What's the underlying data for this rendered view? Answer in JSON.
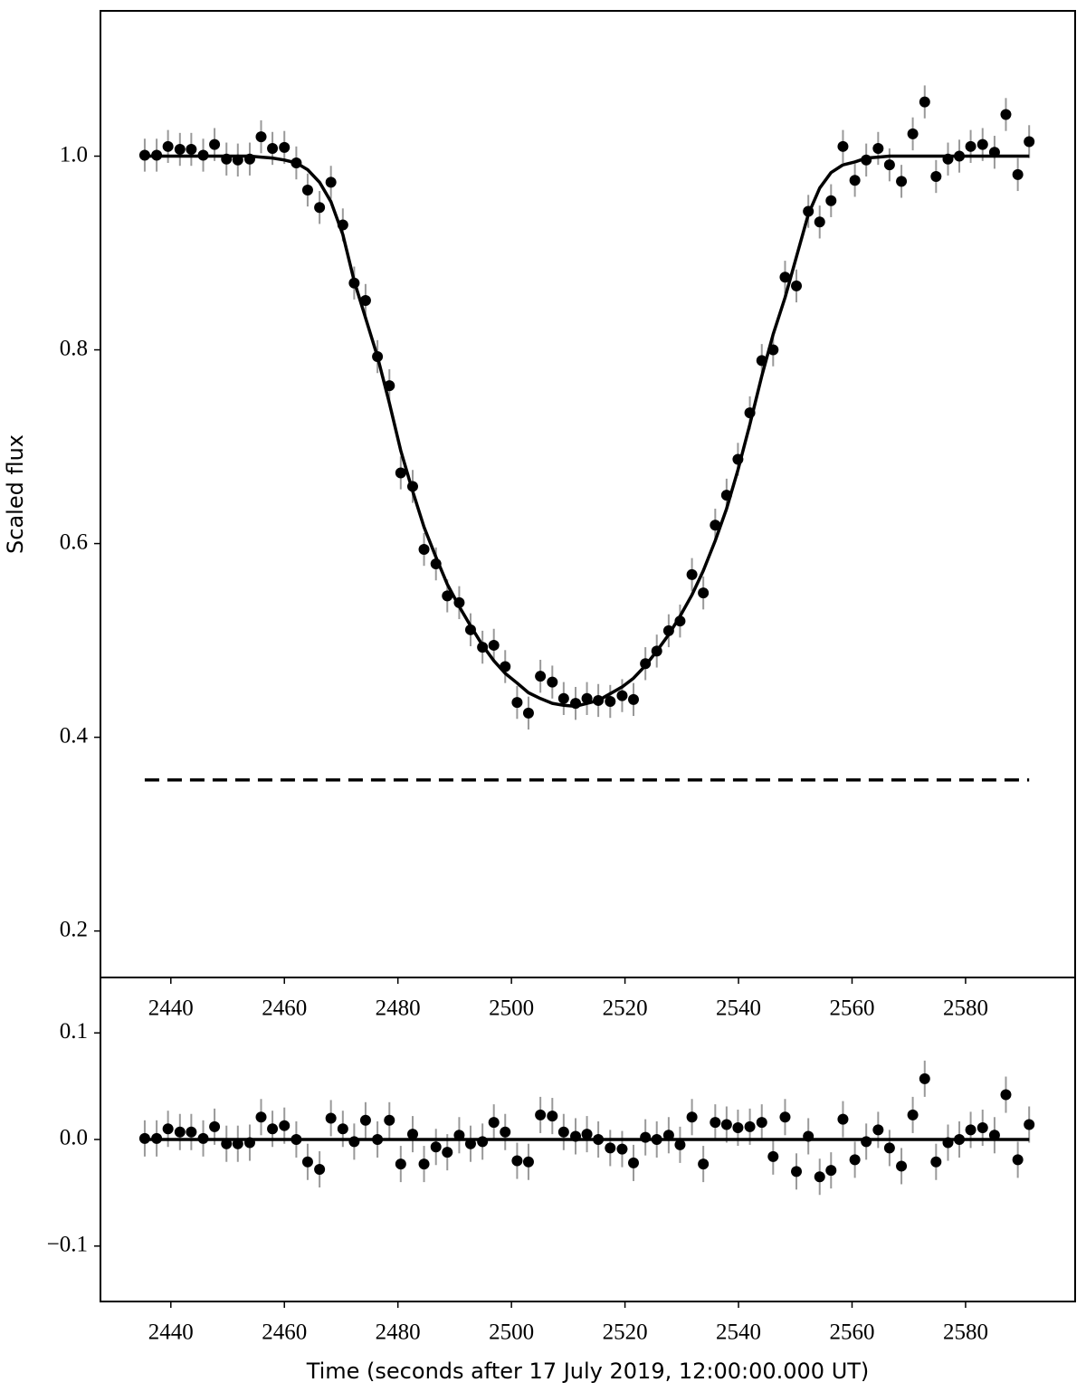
{
  "chart_data": [
    {
      "type": "errorbar",
      "ylabel": "Scaled flux",
      "xlim": [
        2427.6,
        2599.3
      ],
      "ylim": [
        0.152,
        1.15
      ],
      "xticks": [
        2440,
        2460,
        2480,
        2500,
        2520,
        2540,
        2560,
        2580
      ],
      "yticks": [
        0.2,
        0.4,
        0.6,
        0.8,
        {
          "value": 1,
          "label": "1.0"
        }
      ],
      "series": [
        {
          "style": "points",
          "color": "#000000",
          "error_color": "#999999",
          "x": [
            2435.4,
            2437.5,
            2439.5,
            2441.6,
            2443.6,
            2445.7,
            2447.7,
            2449.8,
            2451.8,
            2453.9,
            2455.9,
            2457.9,
            2460.0,
            2462.1,
            2464.1,
            2466.2,
            2468.2,
            2470.3,
            2472.3,
            2474.3,
            2476.4,
            2478.5,
            2480.5,
            2482.6,
            2484.6,
            2486.7,
            2488.7,
            2490.8,
            2492.8,
            2494.9,
            2496.9,
            2498.9,
            2501.0,
            2503.0,
            2505.1,
            2507.2,
            2509.2,
            2511.3,
            2513.3,
            2515.3,
            2517.4,
            2519.5,
            2521.5,
            2523.6,
            2525.6,
            2527.7,
            2529.7,
            2531.8,
            2533.8,
            2535.9,
            2537.9,
            2539.9,
            2542.0,
            2544.1,
            2546.1,
            2548.2,
            2550.2,
            2552.3,
            2554.3,
            2556.3,
            2558.4,
            2560.5,
            2562.5,
            2564.6,
            2566.6,
            2568.7,
            2570.7,
            2572.8,
            2574.8,
            2576.9,
            2578.9,
            2580.9,
            2583.0,
            2585.1,
            2587.1,
            2589.2,
            2591.2
          ],
          "values": [
            1.001,
            1.001,
            1.01,
            1.007,
            1.007,
            1.001,
            1.012,
            0.997,
            0.996,
            0.997,
            1.02,
            1.008,
            1.009,
            0.993,
            0.965,
            0.947,
            0.973,
            0.929,
            0.869,
            0.851,
            0.793,
            0.763,
            0.673,
            0.659,
            0.594,
            0.579,
            0.546,
            0.539,
            0.511,
            0.493,
            0.495,
            0.473,
            0.436,
            0.425,
            0.463,
            0.457,
            0.44,
            0.435,
            0.44,
            0.438,
            0.437,
            0.443,
            0.439,
            0.476,
            0.489,
            0.51,
            0.52,
            0.568,
            0.549,
            0.619,
            0.65,
            0.687,
            0.735,
            0.789,
            0.8,
            0.875,
            0.866,
            0.943,
            0.932,
            0.954,
            1.01,
            0.975,
            0.996,
            1.008,
            0.991,
            0.974,
            1.023,
            1.056,
            0.979,
            0.997,
            1.0,
            1.01,
            1.012,
            1.004,
            1.043,
            0.981,
            1.015
          ],
          "errors": [
            0.017,
            0.017,
            0.017,
            0.017,
            0.017,
            0.017,
            0.017,
            0.017,
            0.017,
            0.017,
            0.017,
            0.017,
            0.017,
            0.017,
            0.017,
            0.017,
            0.017,
            0.017,
            0.017,
            0.017,
            0.017,
            0.017,
            0.017,
            0.017,
            0.017,
            0.017,
            0.017,
            0.017,
            0.017,
            0.017,
            0.017,
            0.017,
            0.017,
            0.017,
            0.017,
            0.017,
            0.017,
            0.017,
            0.017,
            0.017,
            0.017,
            0.017,
            0.017,
            0.017,
            0.017,
            0.017,
            0.017,
            0.017,
            0.017,
            0.017,
            0.017,
            0.017,
            0.017,
            0.017,
            0.017,
            0.017,
            0.017,
            0.017,
            0.017,
            0.017,
            0.017,
            0.017,
            0.017,
            0.017,
            0.017,
            0.017,
            0.017,
            0.017,
            0.017,
            0.017,
            0.017,
            0.017,
            0.017,
            0.017,
            0.017,
            0.017,
            0.017
          ]
        },
        {
          "style": "line",
          "color": "#000000",
          "x": [
            2435.4,
            2437.5,
            2439.5,
            2441.6,
            2443.6,
            2445.7,
            2447.7,
            2449.8,
            2451.8,
            2453.9,
            2455.9,
            2457.9,
            2460.0,
            2462.1,
            2464.1,
            2466.2,
            2468.2,
            2470.3,
            2472.3,
            2474.3,
            2476.4,
            2478.5,
            2480.5,
            2482.6,
            2484.6,
            2486.7,
            2488.7,
            2490.8,
            2492.8,
            2494.9,
            2496.9,
            2498.9,
            2501.0,
            2503.0,
            2505.1,
            2507.2,
            2509.2,
            2511.3,
            2513.3,
            2515.3,
            2517.4,
            2519.5,
            2521.5,
            2523.6,
            2525.6,
            2527.7,
            2529.7,
            2531.8,
            2533.8,
            2535.9,
            2537.9,
            2539.9,
            2542.0,
            2544.1,
            2546.1,
            2548.2,
            2550.2,
            2552.3,
            2554.3,
            2556.3,
            2558.4,
            2560.5,
            2562.5,
            2564.6,
            2566.6,
            2568.7,
            2570.7,
            2572.8,
            2574.8,
            2576.9,
            2578.9,
            2580.9,
            2583.0,
            2585.1,
            2587.1,
            2589.2,
            2591.2
          ],
          "values": [
            1.0,
            1.0,
            1.0,
            1.0,
            1.0,
            1.0,
            1.0,
            1.0,
            1.0,
            1.0,
            0.999,
            0.998,
            0.996,
            0.993,
            0.986,
            0.973,
            0.953,
            0.919,
            0.871,
            0.833,
            0.793,
            0.745,
            0.696,
            0.654,
            0.617,
            0.586,
            0.558,
            0.535,
            0.515,
            0.495,
            0.479,
            0.466,
            0.456,
            0.446,
            0.44,
            0.435,
            0.433,
            0.432,
            0.435,
            0.438,
            0.445,
            0.452,
            0.461,
            0.474,
            0.489,
            0.506,
            0.525,
            0.547,
            0.572,
            0.603,
            0.636,
            0.676,
            0.723,
            0.773,
            0.816,
            0.854,
            0.896,
            0.94,
            0.967,
            0.983,
            0.991,
            0.994,
            0.998,
            0.999,
            1.0,
            1.0,
            1.0,
            1.0,
            1.0,
            1.0,
            1.0,
            1.0,
            1.0,
            1.0,
            1.0,
            1.0,
            1.0
          ]
        },
        {
          "style": "dashed",
          "color": "#000000",
          "x": [
            2435.4,
            2591.2
          ],
          "values": [
            0.356,
            0.356
          ]
        }
      ]
    },
    {
      "type": "errorbar",
      "xlabel": "Time (seconds after 17 July 2019, 12:00:00.000 UT)",
      "xlim": [
        2427.6,
        2599.3
      ],
      "ylim": [
        -0.152,
        0.152
      ],
      "xticks": [
        2440,
        2460,
        2480,
        2500,
        2520,
        2540,
        2560,
        2580
      ],
      "yticks": [
        {
          "value": -0.1,
          "label": "−0.1"
        },
        {
          "value": 0,
          "label": "0.0"
        },
        0.1
      ],
      "series": [
        {
          "style": "points",
          "color": "#000000",
          "error_color": "#999999",
          "x": [
            2435.4,
            2437.5,
            2439.5,
            2441.6,
            2443.6,
            2445.7,
            2447.7,
            2449.8,
            2451.8,
            2453.9,
            2455.9,
            2457.9,
            2460.0,
            2462.1,
            2464.1,
            2466.2,
            2468.2,
            2470.3,
            2472.3,
            2474.3,
            2476.4,
            2478.5,
            2480.5,
            2482.6,
            2484.6,
            2486.7,
            2488.7,
            2490.8,
            2492.8,
            2494.9,
            2496.9,
            2498.9,
            2501.0,
            2503.0,
            2505.1,
            2507.2,
            2509.2,
            2511.3,
            2513.3,
            2515.3,
            2517.4,
            2519.5,
            2521.5,
            2523.6,
            2525.6,
            2527.7,
            2529.7,
            2531.8,
            2533.8,
            2535.9,
            2537.9,
            2539.9,
            2542.0,
            2544.1,
            2546.1,
            2548.2,
            2550.2,
            2552.3,
            2554.3,
            2556.3,
            2558.4,
            2560.5,
            2562.5,
            2564.6,
            2566.6,
            2568.7,
            2570.7,
            2572.8,
            2574.8,
            2576.9,
            2578.9,
            2580.9,
            2583.0,
            2585.1,
            2587.1,
            2589.2,
            2591.2
          ],
          "values": [
            0.001,
            0.001,
            0.01,
            0.007,
            0.007,
            0.001,
            0.012,
            -0.004,
            -0.004,
            -0.003,
            0.021,
            0.01,
            0.013,
            0.0,
            -0.021,
            -0.028,
            0.02,
            0.01,
            -0.002,
            0.018,
            0.0,
            0.018,
            -0.023,
            0.005,
            -0.023,
            -0.007,
            -0.012,
            0.004,
            -0.004,
            -0.002,
            0.016,
            0.007,
            -0.02,
            -0.021,
            0.023,
            0.022,
            0.007,
            0.003,
            0.005,
            0.0,
            -0.008,
            -0.009,
            -0.022,
            0.002,
            0.0,
            0.004,
            -0.005,
            0.021,
            -0.023,
            0.016,
            0.014,
            0.011,
            0.012,
            0.016,
            -0.016,
            0.021,
            -0.03,
            0.003,
            -0.035,
            -0.029,
            0.019,
            -0.019,
            -0.002,
            0.009,
            -0.008,
            -0.025,
            0.023,
            0.057,
            -0.021,
            -0.003,
            0.0,
            0.009,
            0.011,
            0.004,
            0.042,
            -0.019,
            0.014
          ],
          "errors": [
            0.017,
            0.017,
            0.017,
            0.017,
            0.017,
            0.017,
            0.017,
            0.017,
            0.017,
            0.017,
            0.017,
            0.017,
            0.017,
            0.017,
            0.017,
            0.017,
            0.017,
            0.017,
            0.017,
            0.017,
            0.017,
            0.017,
            0.017,
            0.017,
            0.017,
            0.017,
            0.017,
            0.017,
            0.017,
            0.017,
            0.017,
            0.017,
            0.017,
            0.017,
            0.017,
            0.017,
            0.017,
            0.017,
            0.017,
            0.017,
            0.017,
            0.017,
            0.017,
            0.017,
            0.017,
            0.017,
            0.017,
            0.017,
            0.017,
            0.017,
            0.017,
            0.017,
            0.017,
            0.017,
            0.017,
            0.017,
            0.017,
            0.017,
            0.017,
            0.017,
            0.017,
            0.017,
            0.017,
            0.017,
            0.017,
            0.017,
            0.017,
            0.017,
            0.017,
            0.017,
            0.017,
            0.017,
            0.017,
            0.017,
            0.017,
            0.017,
            0.017
          ]
        },
        {
          "style": "line",
          "color": "#000000",
          "x": [
            2435.4,
            2591.2
          ],
          "values": [
            0,
            0
          ]
        }
      ]
    }
  ]
}
